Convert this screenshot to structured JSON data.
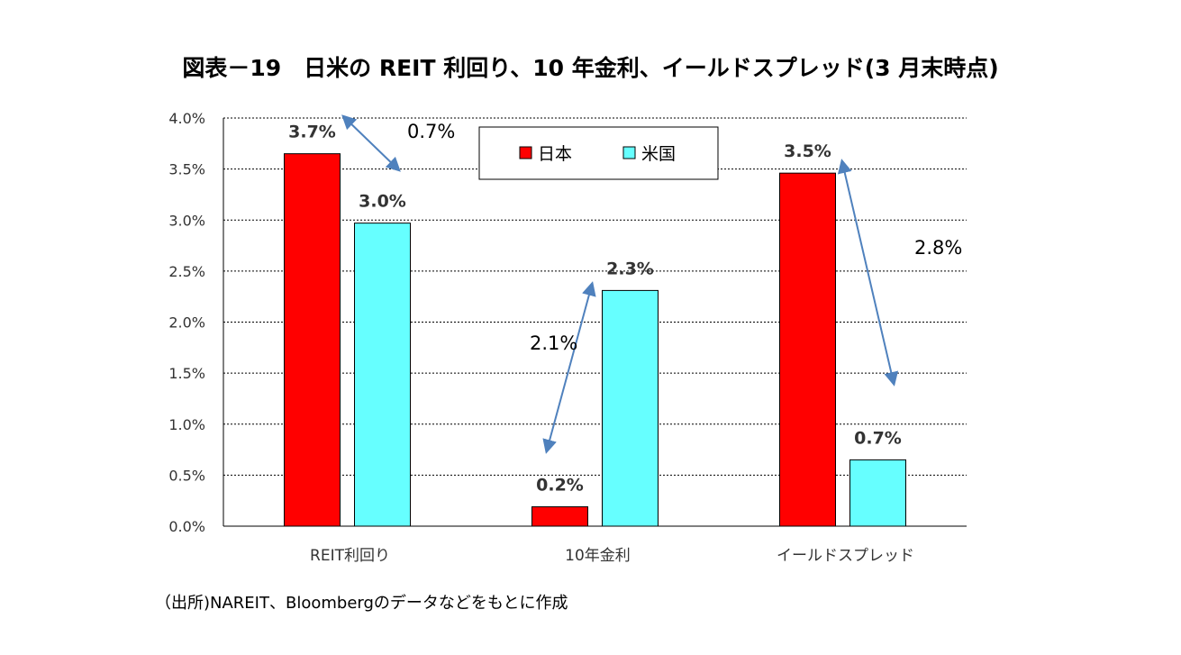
{
  "chart_data": {
    "type": "bar",
    "title": "図表－19　日米の REIT 利回り、10 年金利、イールドスプレッド(3 月末時点)",
    "categories": [
      "REIT利回り",
      "10年金利",
      "イールドスプレッド"
    ],
    "series": [
      {
        "name": "日本",
        "color": "#ff0000",
        "values": [
          3.65,
          0.19,
          3.46
        ],
        "labels": [
          "3.7%",
          "0.2%",
          "3.5%"
        ]
      },
      {
        "name": "米国",
        "color": "#66ffff",
        "values": [
          2.97,
          2.31,
          0.65
        ],
        "labels": [
          "3.0%",
          "2.3%",
          "0.7%"
        ]
      }
    ],
    "ylim": [
      0,
      4
    ],
    "yticks": [
      "0.0%",
      "0.5%",
      "1.0%",
      "1.5%",
      "2.0%",
      "2.5%",
      "3.0%",
      "3.5%",
      "4.0%"
    ],
    "grid": true,
    "legend": "top-center",
    "annotations": [
      {
        "text": "0.7%",
        "category": "REIT利回り"
      },
      {
        "text": "2.1%",
        "category": "10年金利"
      },
      {
        "text": "2.8%",
        "category": "イールドスプレッド"
      }
    ],
    "arrow_color": "#4f81bd"
  },
  "source": "（出所)NAREIT、Bloombergのデータなどをもとに作成"
}
